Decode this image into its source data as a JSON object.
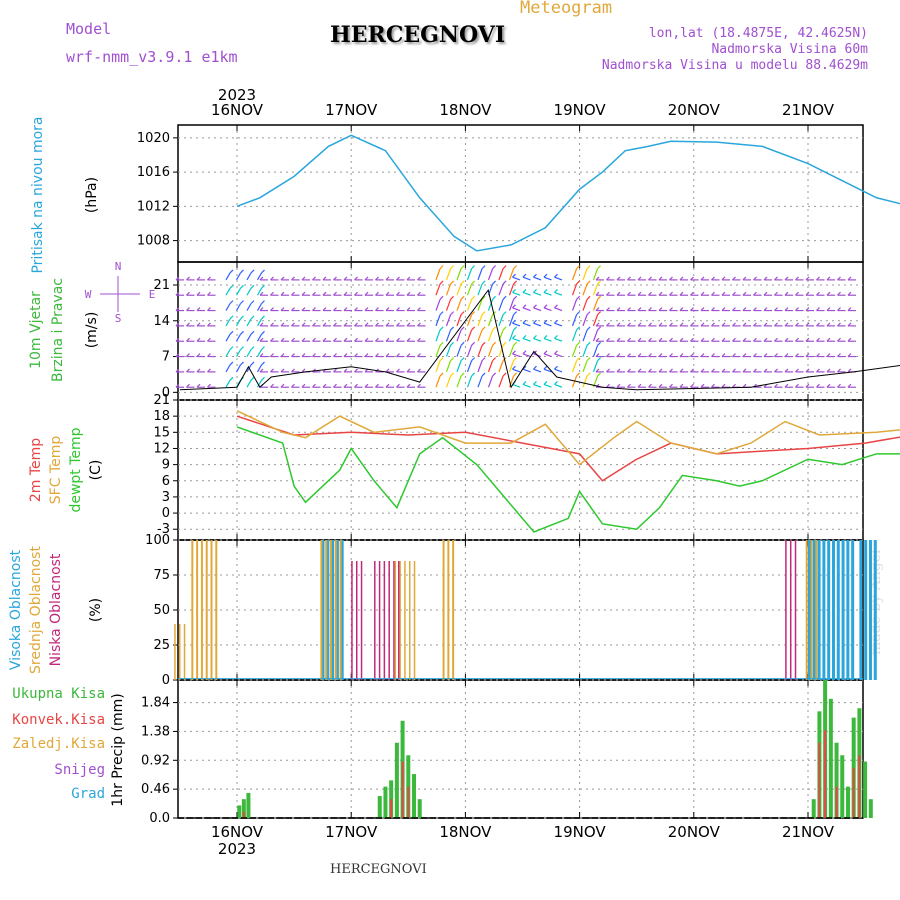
{
  "header": {
    "model_label": "Model",
    "model_name": "wrf-nmm_v3.9.1 e1km",
    "title": "HERCEGNOVI",
    "meteogram": "Meteogram",
    "coords": "lon,lat (18.4875E, 42.4625N)",
    "elevation": "Nadmorska Visina 60m",
    "model_elevation": "Nadmorska Visina u modelu 88.4629m",
    "year_top": "2023",
    "year_bottom": "2023",
    "footer": "HERCEGNOVI",
    "credit": "made by Angel"
  },
  "colors": {
    "pressure": "#2aa6dc",
    "temp": "#e84545",
    "sfc": "#e0a83a",
    "dew": "#2ec82e",
    "high": "#2aa6dc",
    "mid": "#e0a83a",
    "low": "#c0287a",
    "green": "#3cb83c",
    "red": "#e84545",
    "purple": "#a050d0"
  },
  "chart_data": [
    {
      "type": "line",
      "id": "pressure",
      "x_dates": [
        "16NOV",
        "17NOV",
        "18NOV",
        "19NOV",
        "20NOV",
        "21NOV"
      ],
      "ylabel": [
        "Pritisak na nivou mora",
        "(hPa)"
      ],
      "yticks": [
        1008,
        1012,
        1016,
        1020
      ],
      "ylim": [
        1005.5,
        1021.5
      ],
      "series": [
        {
          "values": [
            [
              0,
              1012
            ],
            [
              0.2,
              1013
            ],
            [
              0.5,
              1015.5
            ],
            [
              0.8,
              1019
            ],
            [
              1.0,
              1020.3
            ],
            [
              1.3,
              1018.5
            ],
            [
              1.6,
              1013
            ],
            [
              1.9,
              1008.5
            ],
            [
              2.1,
              1006.8
            ],
            [
              2.4,
              1007.5
            ],
            [
              2.7,
              1009.5
            ],
            [
              3.0,
              1014
            ],
            [
              3.2,
              1016
            ],
            [
              3.4,
              1018.5
            ],
            [
              3.6,
              1019
            ],
            [
              3.8,
              1019.6
            ],
            [
              4.2,
              1019.5
            ],
            [
              4.6,
              1019
            ],
            [
              5.0,
              1017
            ],
            [
              5.3,
              1015
            ],
            [
              5.6,
              1013
            ],
            [
              5.9,
              1012
            ],
            [
              6.05,
              1011
            ]
          ]
        }
      ]
    },
    {
      "type": "barbs",
      "id": "wind",
      "ylabel": [
        "10m Vjetar",
        "Brzina i Pravac",
        "(m/s)"
      ],
      "yticks": [
        0,
        7,
        14,
        21
      ],
      "ylim": [
        -1.5,
        25.5
      ],
      "direction_legend": [
        "N",
        "E",
        "W",
        "S"
      ]
    },
    {
      "type": "line",
      "id": "temperature",
      "ylabel": [
        "2m Temp",
        "SFC Temp",
        "dewpt Temp",
        "(C)"
      ],
      "yticks": [
        -3,
        0,
        3,
        6,
        9,
        12,
        15,
        18,
        21
      ],
      "ylim": [
        -5,
        21
      ],
      "series": [
        {
          "name": "2m Temp",
          "values": [
            [
              0,
              18
            ],
            [
              0.5,
              14.5
            ],
            [
              1.0,
              15
            ],
            [
              1.5,
              14.5
            ],
            [
              2.0,
              15
            ],
            [
              2.5,
              13
            ],
            [
              3.0,
              11
            ],
            [
              3.2,
              6
            ],
            [
              3.5,
              10
            ],
            [
              3.8,
              13
            ],
            [
              4.2,
              11
            ],
            [
              4.6,
              11.5
            ],
            [
              5.0,
              12
            ],
            [
              5.5,
              13
            ],
            [
              6.05,
              15
            ]
          ]
        },
        {
          "name": "SFC Temp",
          "values": [
            [
              0,
              19
            ],
            [
              0.4,
              15
            ],
            [
              0.6,
              14
            ],
            [
              0.9,
              18
            ],
            [
              1.2,
              15
            ],
            [
              1.6,
              16
            ],
            [
              2.0,
              13
            ],
            [
              2.4,
              13
            ],
            [
              2.7,
              16.5
            ],
            [
              3.0,
              9
            ],
            [
              3.3,
              14
            ],
            [
              3.5,
              17
            ],
            [
              3.8,
              13
            ],
            [
              4.2,
              11
            ],
            [
              4.5,
              13
            ],
            [
              4.8,
              17
            ],
            [
              5.1,
              14.5
            ],
            [
              5.6,
              15
            ],
            [
              6.05,
              16
            ]
          ]
        },
        {
          "name": "dewpt Temp",
          "values": [
            [
              0,
              16
            ],
            [
              0.4,
              13
            ],
            [
              0.5,
              5
            ],
            [
              0.6,
              2
            ],
            [
              0.9,
              8
            ],
            [
              1.0,
              12
            ],
            [
              1.2,
              6
            ],
            [
              1.4,
              1
            ],
            [
              1.6,
              11
            ],
            [
              1.8,
              14
            ],
            [
              2.1,
              9
            ],
            [
              2.3,
              4
            ],
            [
              2.6,
              -3.5
            ],
            [
              2.9,
              -1
            ],
            [
              3.0,
              4
            ],
            [
              3.2,
              -2
            ],
            [
              3.5,
              -3
            ],
            [
              3.7,
              1
            ],
            [
              3.9,
              7
            ],
            [
              4.2,
              6
            ],
            [
              4.4,
              5
            ],
            [
              4.6,
              6
            ],
            [
              5.0,
              10
            ],
            [
              5.3,
              9
            ],
            [
              5.6,
              11
            ],
            [
              6.05,
              11
            ]
          ]
        }
      ]
    },
    {
      "type": "bar",
      "id": "clouds",
      "ylabel": [
        "Visoka Oblacnost",
        "Srednja Oblacnost",
        "Niska Oblacnost",
        "(%)"
      ],
      "yticks": [
        0,
        25,
        50,
        75,
        100
      ],
      "ylim": [
        0,
        100
      ]
    },
    {
      "type": "bar",
      "id": "precip",
      "ylabel": [
        "Ukupna Kisa",
        "Konvek.Kisa",
        "Zaledj.Kisa",
        "Snijeg",
        "Grad",
        "1hr Precip (mm)"
      ],
      "yticks": [
        0,
        0.46,
        0.92,
        1.38,
        1.84
      ],
      "ylim": [
        0,
        2.2
      ],
      "total": [
        [
          0.02,
          0.2
        ],
        [
          0.06,
          0.3
        ],
        [
          0.1,
          0.4
        ],
        [
          1.25,
          0.35
        ],
        [
          1.3,
          0.5
        ],
        [
          1.35,
          0.6
        ],
        [
          1.4,
          1.2
        ],
        [
          1.45,
          1.55
        ],
        [
          1.5,
          1.0
        ],
        [
          1.55,
          0.7
        ],
        [
          1.6,
          0.3
        ],
        [
          5.05,
          0.3
        ],
        [
          5.1,
          1.7
        ],
        [
          5.15,
          2.2
        ],
        [
          5.2,
          1.9
        ],
        [
          5.25,
          1.2
        ],
        [
          5.3,
          1.0
        ],
        [
          5.35,
          0.5
        ],
        [
          5.4,
          1.6
        ],
        [
          5.45,
          1.75
        ],
        [
          5.5,
          0.9
        ],
        [
          5.55,
          0.3
        ]
      ],
      "convective": [
        [
          0.06,
          0.1
        ],
        [
          1.35,
          0.3
        ],
        [
          1.45,
          0.9
        ],
        [
          1.5,
          0.5
        ],
        [
          5.1,
          1.2
        ],
        [
          5.15,
          1.4
        ],
        [
          5.25,
          0.5
        ],
        [
          5.4,
          0.8
        ],
        [
          5.45,
          1.0
        ]
      ]
    }
  ]
}
